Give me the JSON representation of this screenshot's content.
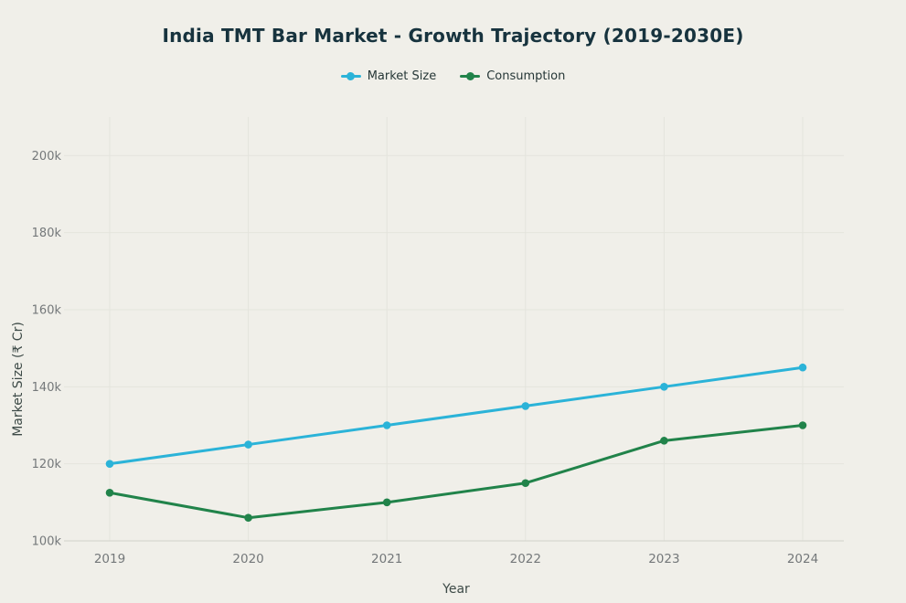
{
  "title": "India TMT Bar Market - Growth Trajectory (2019-2030E)",
  "legend": [
    {
      "label": "Market Size",
      "color": "#2bb3d8"
    },
    {
      "label": "Consumption",
      "color": "#21834a"
    }
  ],
  "axes": {
    "xlabel": "Year",
    "ylabel": "Market Size (₹ Cr)",
    "xticks": [
      "2019",
      "2020",
      "2021",
      "2022",
      "2023",
      "2024"
    ],
    "ytick_labels": [
      "100k",
      "120k",
      "140k",
      "160k",
      "180k",
      "200k"
    ]
  },
  "chart_data": {
    "type": "line",
    "title": "India TMT Bar Market - Growth Trajectory (2019-2030E)",
    "xlabel": "Year",
    "ylabel": "Market Size (₹ Cr)",
    "x": [
      2019,
      2020,
      2021,
      2022,
      2023,
      2024
    ],
    "series": [
      {
        "name": "Market Size",
        "color": "#2bb3d8",
        "values": [
          120000,
          125000,
          130000,
          135000,
          140000,
          145000
        ]
      },
      {
        "name": "Consumption",
        "color": "#21834a",
        "values": [
          112500,
          106000,
          110000,
          115000,
          126000,
          130000
        ]
      }
    ],
    "ylim": [
      100000,
      200000
    ],
    "yticks": {
      "values": [
        100000,
        120000,
        140000,
        160000,
        180000,
        200000
      ],
      "labels": [
        "100k",
        "120k",
        "140k",
        "160k",
        "180k",
        "200k"
      ]
    },
    "grid": true,
    "legend_position": "top"
  },
  "colors": {
    "background": "#f0efe9",
    "grid": "#e4e4dd",
    "axis_line": "#d7d7d0",
    "tick_text": "#74787a",
    "axis_title_text": "#3d4a47",
    "title_text": "#17333e",
    "legend_text": "#263737"
  }
}
